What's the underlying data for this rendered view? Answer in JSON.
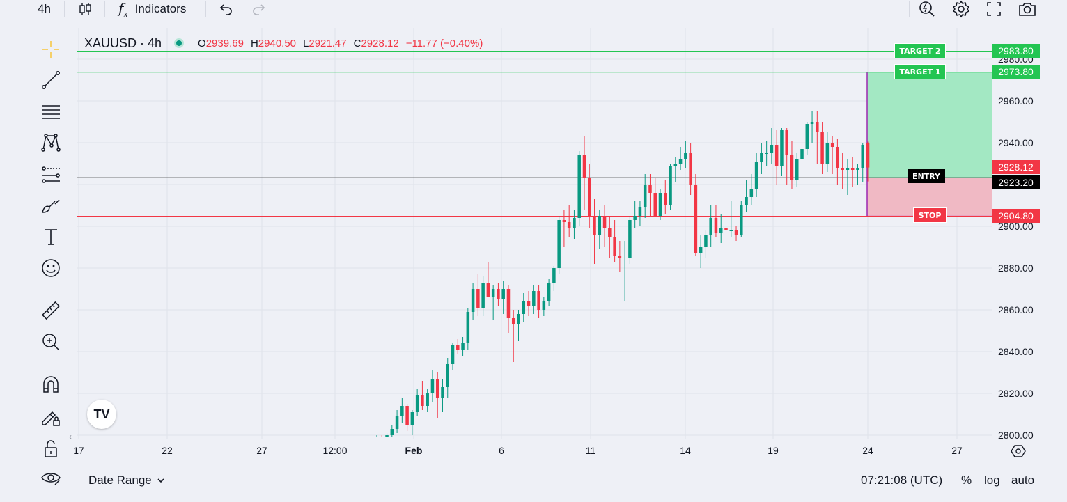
{
  "toolbar": {
    "interval": "4h",
    "indicators_label": "Indicators"
  },
  "legend": {
    "symbol": "XAUUSD · 4h",
    "o_key": "O",
    "o_val": "2939.69",
    "h_key": "H",
    "h_val": "2940.50",
    "l_key": "L",
    "l_val": "2921.47",
    "c_key": "C",
    "c_val": "2928.12",
    "change": "−11.77 (−0.40%)"
  },
  "colors": {
    "up": "#089981",
    "down": "#f23645",
    "target": "#23c552",
    "stop": "#f23645",
    "entry": "#000000",
    "profit_zone": "#a3e8c3",
    "loss_zone": "#f0b9c4",
    "range_border": "#9c27b0"
  },
  "positions": {
    "target2": {
      "label": "TARGET 2",
      "price": "2983.80"
    },
    "target1": {
      "label": "TARGET 1",
      "price": "2973.80"
    },
    "entry": {
      "label": "ENTRY",
      "price": "2923.20"
    },
    "stop": {
      "label": "STOP",
      "price": "2904.80"
    },
    "last_price": "2928.12"
  },
  "chart_data": {
    "type": "candlestick",
    "symbol": "XAUUSD",
    "interval": "4h",
    "y_axis": {
      "ticks": [
        "2980.00",
        "2960.00",
        "2940.00",
        "2920.00",
        "2900.00",
        "2880.00",
        "2860.00",
        "2840.00",
        "2820.00",
        "2800.00"
      ],
      "range": [
        2798,
        2988
      ]
    },
    "x_axis": {
      "ticks": [
        "17",
        "22",
        "27",
        "12:00",
        "Feb",
        "6",
        "11",
        "14",
        "19",
        "24",
        "27"
      ]
    },
    "candles_ohlc": [
      [
        2798,
        2800,
        2797,
        2799
      ],
      [
        2799,
        2800,
        2797,
        2798
      ],
      [
        2798,
        2801,
        2797,
        2800
      ],
      [
        2800,
        2805,
        2799,
        2803
      ],
      [
        2803,
        2812,
        2801,
        2809
      ],
      [
        2809,
        2818,
        2806,
        2814
      ],
      [
        2814,
        2815,
        2802,
        2805
      ],
      [
        2805,
        2812,
        2800,
        2811
      ],
      [
        2811,
        2822,
        2809,
        2819
      ],
      [
        2819,
        2826,
        2812,
        2814
      ],
      [
        2814,
        2822,
        2811,
        2820
      ],
      [
        2820,
        2831,
        2816,
        2827
      ],
      [
        2827,
        2830,
        2808,
        2818
      ],
      [
        2818,
        2827,
        2811,
        2823
      ],
      [
        2823,
        2837,
        2818,
        2834
      ],
      [
        2834,
        2844,
        2831,
        2843
      ],
      [
        2843,
        2846,
        2839,
        2841
      ],
      [
        2841,
        2847,
        2838,
        2844
      ],
      [
        2844,
        2861,
        2841,
        2859
      ],
      [
        2859,
        2873,
        2855,
        2870
      ],
      [
        2870,
        2877,
        2857,
        2861
      ],
      [
        2861,
        2876,
        2857,
        2873
      ],
      [
        2873,
        2883,
        2866,
        2866
      ],
      [
        2866,
        2872,
        2855,
        2870
      ],
      [
        2870,
        2873,
        2862,
        2865
      ],
      [
        2865,
        2874,
        2858,
        2870
      ],
      [
        2870,
        2872,
        2849,
        2856
      ],
      [
        2856,
        2860,
        2835,
        2853
      ],
      [
        2853,
        2860,
        2845,
        2858
      ],
      [
        2858,
        2868,
        2854,
        2864
      ],
      [
        2864,
        2869,
        2857,
        2862
      ],
      [
        2862,
        2872,
        2858,
        2869
      ],
      [
        2869,
        2872,
        2856,
        2860
      ],
      [
        2860,
        2866,
        2857,
        2864
      ],
      [
        2864,
        2875,
        2862,
        2873
      ],
      [
        2873,
        2881,
        2869,
        2880
      ],
      [
        2880,
        2905,
        2877,
        2903
      ],
      [
        2903,
        2908,
        2890,
        2902
      ],
      [
        2902,
        2910,
        2895,
        2899
      ],
      [
        2899,
        2908,
        2894,
        2904
      ],
      [
        2904,
        2936,
        2900,
        2934
      ],
      [
        2934,
        2943,
        2908,
        2923
      ],
      [
        2923,
        2930,
        2899,
        2905
      ],
      [
        2905,
        2913,
        2882,
        2896
      ],
      [
        2896,
        2908,
        2889,
        2905
      ],
      [
        2905,
        2910,
        2890,
        2899
      ],
      [
        2899,
        2905,
        2885,
        2895
      ],
      [
        2895,
        2903,
        2883,
        2886
      ],
      [
        2886,
        2893,
        2878,
        2885
      ],
      [
        2885,
        2893,
        2864,
        2885
      ],
      [
        2885,
        2905,
        2882,
        2903
      ],
      [
        2903,
        2912,
        2899,
        2905
      ],
      [
        2905,
        2912,
        2900,
        2909
      ],
      [
        2909,
        2925,
        2904,
        2920
      ],
      [
        2920,
        2925,
        2905,
        2916
      ],
      [
        2916,
        2923,
        2906,
        2905
      ],
      [
        2905,
        2918,
        2903,
        2916
      ],
      [
        2916,
        2922,
        2906,
        2910
      ],
      [
        2910,
        2930,
        2908,
        2929
      ],
      [
        2929,
        2933,
        2921,
        2930
      ],
      [
        2930,
        2938,
        2927,
        2932
      ],
      [
        2932,
        2941,
        2928,
        2935
      ],
      [
        2935,
        2940,
        2915,
        2920
      ],
      [
        2920,
        2925,
        2886,
        2887
      ],
      [
        2887,
        2896,
        2880,
        2890
      ],
      [
        2890,
        2898,
        2885,
        2896
      ],
      [
        2896,
        2910,
        2890,
        2904
      ],
      [
        2904,
        2910,
        2895,
        2897
      ],
      [
        2897,
        2906,
        2892,
        2899
      ],
      [
        2899,
        2905,
        2893,
        2898
      ],
      [
        2898,
        2912,
        2895,
        2898
      ],
      [
        2898,
        2900,
        2893,
        2896
      ],
      [
        2896,
        2912,
        2895,
        2910
      ],
      [
        2910,
        2922,
        2907,
        2914
      ],
      [
        2914,
        2925,
        2910,
        2918
      ],
      [
        2918,
        2935,
        2914,
        2931
      ],
      [
        2931,
        2940,
        2925,
        2935
      ],
      [
        2935,
        2941,
        2929,
        2935
      ],
      [
        2935,
        2947,
        2930,
        2939
      ],
      [
        2939,
        2946,
        2920,
        2929
      ],
      [
        2929,
        2947,
        2924,
        2946
      ],
      [
        2946,
        2947,
        2920,
        2934
      ],
      [
        2934,
        2941,
        2918,
        2922
      ],
      [
        2922,
        2935,
        2919,
        2932
      ],
      [
        2932,
        2938,
        2928,
        2937
      ],
      [
        2937,
        2950,
        2934,
        2949
      ],
      [
        2949,
        2955,
        2940,
        2950
      ],
      [
        2950,
        2955,
        2930,
        2945
      ],
      [
        2945,
        2950,
        2925,
        2930
      ],
      [
        2930,
        2945,
        2926,
        2940
      ],
      [
        2940,
        2943,
        2925,
        2938
      ],
      [
        2938,
        2942,
        2920,
        2928
      ],
      [
        2928,
        2935,
        2918,
        2927
      ],
      [
        2927,
        2932,
        2915,
        2928
      ],
      [
        2928,
        2933,
        2919,
        2927
      ],
      [
        2927,
        2930,
        2920,
        2928
      ],
      [
        2928,
        2940,
        2921,
        2939
      ],
      [
        2939.69,
        2940.5,
        2921.47,
        2928.12
      ]
    ]
  },
  "bottom": {
    "date_range_label": "Date Range",
    "time": "07:21:08 (UTC)",
    "pct_label": "%",
    "log_label": "log",
    "auto_label": "auto"
  },
  "logo": {
    "text": "TV"
  }
}
